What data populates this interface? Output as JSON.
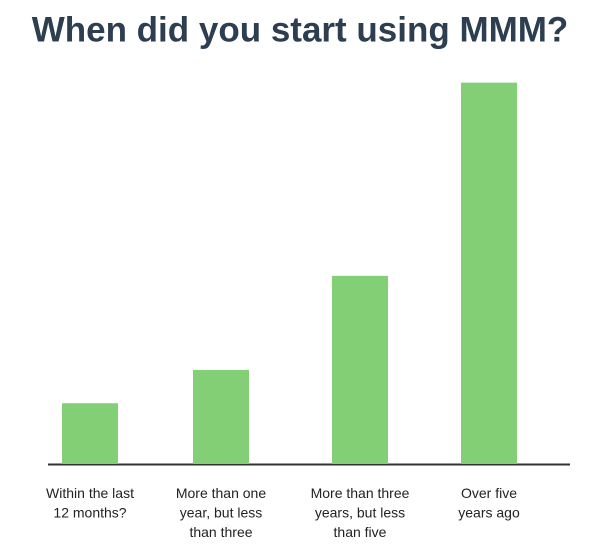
{
  "chart_data": {
    "type": "bar",
    "title": "When did you start using MMM?",
    "categories": [
      "Within the last\n12 months?",
      "More than one\nyear, but less\nthan three",
      "More than three\nyears, but less\nthan five",
      "Over five\nyears ago"
    ],
    "values": [
      8.4,
      13,
      26,
      52.7
    ],
    "color": "#82cf76",
    "ylim": [
      0,
      55
    ]
  }
}
